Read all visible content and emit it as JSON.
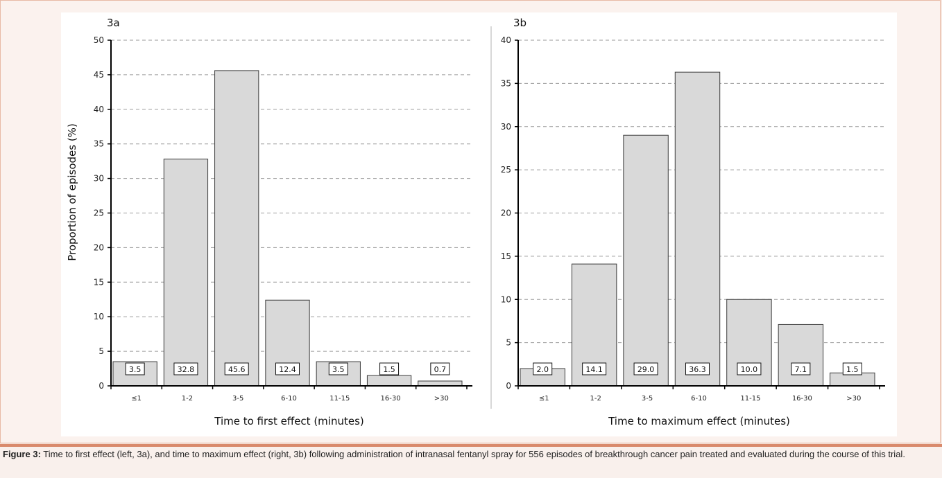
{
  "figure": {
    "caption_label": "Figure 3:",
    "caption_text": "Time to first effect (left, 3a), and time to maximum effect (right, 3b) following administration of intranasal fentanyl spray for 556 episodes of breakthrough cancer pain treated and evaluated during the course of this trial."
  },
  "chart_data": [
    {
      "type": "bar",
      "panel_label": "3a",
      "categories": [
        "≤1",
        "1-2",
        "3-5",
        "6-10",
        "11-15",
        "16-30",
        ">30"
      ],
      "values": [
        3.5,
        32.8,
        45.6,
        12.4,
        3.5,
        1.5,
        0.7
      ],
      "value_labels": [
        "3.5",
        "32.8",
        "45.6",
        "12.4",
        "3.5",
        "1.5",
        "0.7"
      ],
      "xlabel": "Time to first effect (minutes)",
      "ylabel": "Proportion of episodes (%)",
      "ylim": [
        0,
        50
      ],
      "yticks": [
        0,
        5,
        10,
        15,
        20,
        25,
        30,
        35,
        40,
        45,
        50
      ],
      "grid": "horizontal-dashed"
    },
    {
      "type": "bar",
      "panel_label": "3b",
      "categories": [
        "≤1",
        "1-2",
        "3-5",
        "6-10",
        "11-15",
        "16-30",
        ">30"
      ],
      "values": [
        2.0,
        14.1,
        29.0,
        36.3,
        10.0,
        7.1,
        1.5
      ],
      "value_labels": [
        "2.0",
        "14.1",
        "29.0",
        "36.3",
        "10.0",
        "7.1",
        "1.5"
      ],
      "xlabel": "Time to maximum effect (minutes)",
      "ylabel": "",
      "ylim": [
        0,
        40
      ],
      "yticks": [
        0,
        5,
        10,
        15,
        20,
        25,
        30,
        35,
        40
      ],
      "grid": "horizontal-dashed"
    }
  ],
  "colors": {
    "bar_fill": "#d9d9d9",
    "bar_stroke": "#3a3a3a",
    "grid": "#9a9a9a",
    "axis": "#000000",
    "frame_border": "#e8b9a5",
    "caption_rule": "#d98a6c"
  }
}
